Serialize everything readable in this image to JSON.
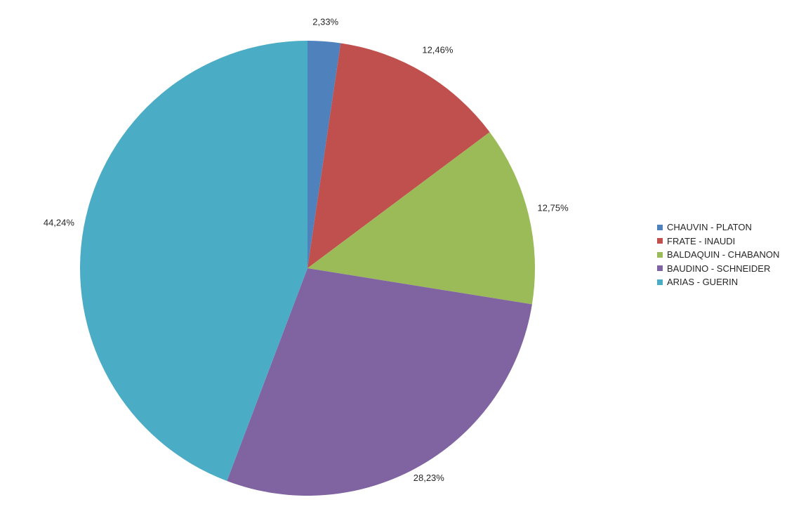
{
  "chart_data": {
    "type": "pie",
    "title": "",
    "categories": [
      "CHAUVIN - PLATON",
      "FRATE - INAUDI",
      "BALDAQUIN - CHABANON",
      "BAUDINO - SCHNEIDER",
      "ARIAS - GUERIN"
    ],
    "values": [
      2.33,
      12.46,
      12.75,
      28.23,
      44.24
    ],
    "data_labels": [
      "2,33%",
      "12,46%",
      "12,75%",
      "28,23%",
      "44,24%"
    ],
    "colors": [
      "#4F81BD",
      "#C0504D",
      "#9BBB59",
      "#8064A2",
      "#4BACC6"
    ],
    "legend_position": "right",
    "start_angle": "top",
    "direction": "clockwise"
  }
}
